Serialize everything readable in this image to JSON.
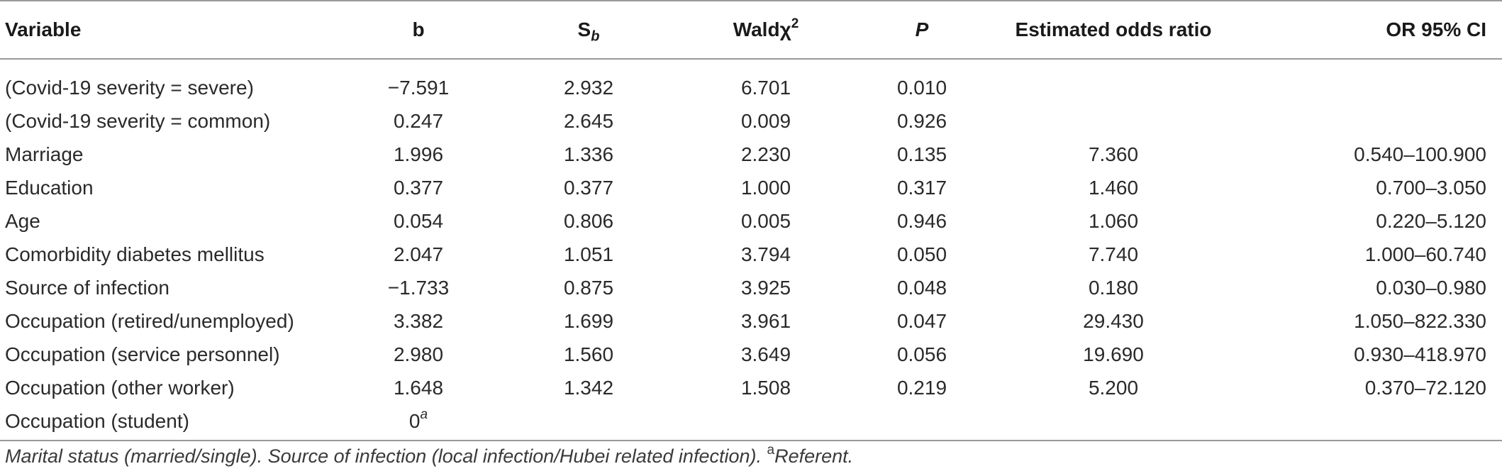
{
  "headers": {
    "variable": "Variable",
    "b": "b",
    "sb_base": "S",
    "sb_sub": "b",
    "wald_base": "Waldχ",
    "wald_sup": "2",
    "p": "P",
    "or": "Estimated odds ratio",
    "ci": "OR 95% CI"
  },
  "rows": [
    {
      "variable": "(Covid-19 severity = severe)",
      "b": "−7.591",
      "sb": "2.932",
      "wald": "6.701",
      "p": "0.010",
      "or": "",
      "ci": ""
    },
    {
      "variable": "(Covid-19 severity = common)",
      "b": "0.247",
      "sb": "2.645",
      "wald": "0.009",
      "p": "0.926",
      "or": "",
      "ci": ""
    },
    {
      "variable": "Marriage",
      "b": "1.996",
      "sb": "1.336",
      "wald": "2.230",
      "p": "0.135",
      "or": "7.360",
      "ci": "0.540–100.900"
    },
    {
      "variable": "Education",
      "b": "0.377",
      "sb": "0.377",
      "wald": "1.000",
      "p": "0.317",
      "or": "1.460",
      "ci": "0.700–3.050"
    },
    {
      "variable": "Age",
      "b": "0.054",
      "sb": "0.806",
      "wald": "0.005",
      "p": "0.946",
      "or": "1.060",
      "ci": "0.220–5.120"
    },
    {
      "variable": "Comorbidity diabetes mellitus",
      "b": "2.047",
      "sb": "1.051",
      "wald": "3.794",
      "p": "0.050",
      "or": "7.740",
      "ci": "1.000–60.740"
    },
    {
      "variable": "Source of infection",
      "b": "−1.733",
      "sb": "0.875",
      "wald": "3.925",
      "p": "0.048",
      "or": "0.180",
      "ci": "0.030–0.980"
    },
    {
      "variable": "Occupation (retired/unemployed)",
      "b": "3.382",
      "sb": "1.699",
      "wald": "3.961",
      "p": "0.047",
      "or": "29.430",
      "ci": "1.050–822.330"
    },
    {
      "variable": "Occupation (service personnel)",
      "b": "2.980",
      "sb": "1.560",
      "wald": "3.649",
      "p": "0.056",
      "or": "19.690",
      "ci": "0.930–418.970"
    },
    {
      "variable": "Occupation (other worker)",
      "b": "1.648",
      "sb": "1.342",
      "wald": "1.508",
      "p": "0.219",
      "or": "5.200",
      "ci": "0.370–72.120"
    },
    {
      "variable": "Occupation (student)",
      "b": "0",
      "b_sup": "a",
      "sb": "",
      "wald": "",
      "p": "",
      "or": "",
      "ci": ""
    }
  ],
  "footnote": {
    "text": "Marital status (married/single). Source of infection (local infection/Hubei related infection).",
    "mark": "a",
    "referent": "Referent."
  }
}
